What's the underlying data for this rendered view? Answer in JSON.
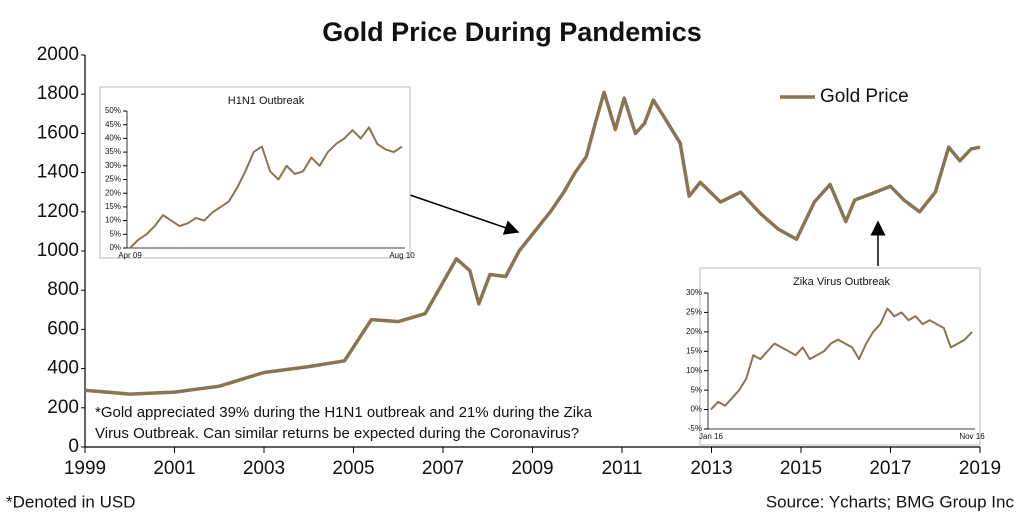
{
  "chart_data": [
    {
      "type": "line",
      "title": "Gold Price During Pandemics",
      "x": [
        1999.0,
        2000.0,
        2001.0,
        2002.0,
        2003.0,
        2004.0,
        2004.8,
        2005.4,
        2006.0,
        2006.6,
        2006.9,
        2007.3,
        2007.6,
        2007.8,
        2008.05,
        2008.4,
        2008.7,
        2009.05,
        2009.4,
        2009.7,
        2009.95,
        2010.2,
        2010.4,
        2010.6,
        2010.85,
        2011.05,
        2011.3,
        2011.5,
        2011.7,
        2011.95,
        2012.3,
        2012.5,
        2012.75,
        2013.2,
        2013.65,
        2014.1,
        2014.5,
        2014.9,
        2015.3,
        2015.65,
        2016.0,
        2016.2,
        2016.55,
        2017.0,
        2017.3,
        2017.65,
        2018.0,
        2018.3,
        2018.55,
        2018.8,
        2019.0
      ],
      "series": [
        {
          "name": "Gold Price",
          "color": "#8a7552",
          "values": [
            290,
            270,
            280,
            310,
            380,
            410,
            440,
            650,
            640,
            680,
            800,
            960,
            900,
            730,
            880,
            870,
            1000,
            1100,
            1200,
            1300,
            1400,
            1480,
            1650,
            1810,
            1620,
            1780,
            1600,
            1650,
            1770,
            1680,
            1550,
            1280,
            1350,
            1250,
            1300,
            1190,
            1110,
            1060,
            1250,
            1340,
            1150,
            1260,
            1290,
            1330,
            1260,
            1200,
            1300,
            1530,
            1460,
            1520,
            1530
          ]
        }
      ],
      "xlim": [
        1999,
        2019
      ],
      "xticks": [
        1999,
        2001,
        2003,
        2005,
        2007,
        2009,
        2011,
        2013,
        2015,
        2017,
        2019
      ],
      "ylim": [
        0,
        2000
      ],
      "yticks": [
        0,
        200,
        400,
        600,
        800,
        1000,
        1200,
        1400,
        1600,
        1800,
        2000
      ],
      "legend": "top-right",
      "annotations": [
        "*Gold appreciated 39% during the H1N1 outbreak and 21% during the Zika",
        "Virus Outbreak. Can similar returns be expected during the Coronavirus?"
      ],
      "note": "*Denoted in USD",
      "source": "Source: Ycharts; BMG Group Inc"
    },
    {
      "type": "line",
      "title": "H1N1 Outbreak",
      "color": "#8a7552",
      "categories": [
        "Apr 09",
        null,
        null,
        null,
        null,
        null,
        null,
        null,
        null,
        null,
        null,
        null,
        null,
        null,
        null,
        null,
        null,
        null,
        null,
        null,
        null,
        null,
        null,
        null,
        null,
        null,
        null,
        null,
        null,
        null,
        null,
        null,
        null,
        "Aug 10"
      ],
      "values": [
        0,
        3,
        5,
        8,
        12,
        10,
        8,
        9,
        11,
        10,
        13,
        15,
        17,
        22,
        28,
        35,
        37,
        28,
        25,
        30,
        27,
        28,
        33,
        30,
        35,
        38,
        40,
        43,
        40,
        44,
        38,
        36,
        35,
        37
      ],
      "ylim": [
        0,
        50
      ],
      "yticks": [
        {
          "value": 0,
          "label": "0%"
        },
        {
          "value": 5,
          "label": "5%"
        },
        {
          "value": 10,
          "label": "10%"
        },
        {
          "value": 15,
          "label": "15%"
        },
        {
          "value": 20,
          "label": "20%"
        },
        {
          "value": 25,
          "label": "25%"
        },
        {
          "value": 30,
          "label": "30%"
        },
        {
          "value": 35,
          "label": "35%"
        },
        {
          "value": 40,
          "label": "40%"
        },
        {
          "value": 45,
          "label": "45%"
        },
        {
          "value": 50,
          "label": "50%"
        }
      ]
    },
    {
      "type": "line",
      "title": "Zika Virus Outbreak",
      "color": "#8a7552",
      "categories": [
        "Jan 16",
        null,
        null,
        null,
        null,
        null,
        null,
        null,
        null,
        null,
        null,
        null,
        null,
        null,
        null,
        null,
        null,
        null,
        null,
        null,
        null,
        null,
        null,
        null,
        null,
        null,
        null,
        null,
        null,
        null,
        null,
        null,
        null,
        null,
        null,
        null,
        null,
        "Nov 16"
      ],
      "values": [
        0,
        2,
        1,
        3,
        5,
        8,
        14,
        13,
        15,
        17,
        16,
        15,
        14,
        16,
        13,
        14,
        15,
        17,
        18,
        17,
        16,
        13,
        17,
        20,
        22,
        26,
        24,
        25,
        23,
        24,
        22,
        23,
        22,
        21,
        16,
        17,
        18,
        20
      ],
      "ylim": [
        -5,
        30
      ],
      "yticks": [
        {
          "value": -5,
          "label": "-5%"
        },
        {
          "value": 0,
          "label": "0%"
        },
        {
          "value": 5,
          "label": "5%"
        },
        {
          "value": 10,
          "label": "10%"
        },
        {
          "value": 15,
          "label": "15%"
        },
        {
          "value": 20,
          "label": "20%"
        },
        {
          "value": 25,
          "label": "25%"
        },
        {
          "value": 30,
          "label": "30%"
        }
      ]
    }
  ]
}
